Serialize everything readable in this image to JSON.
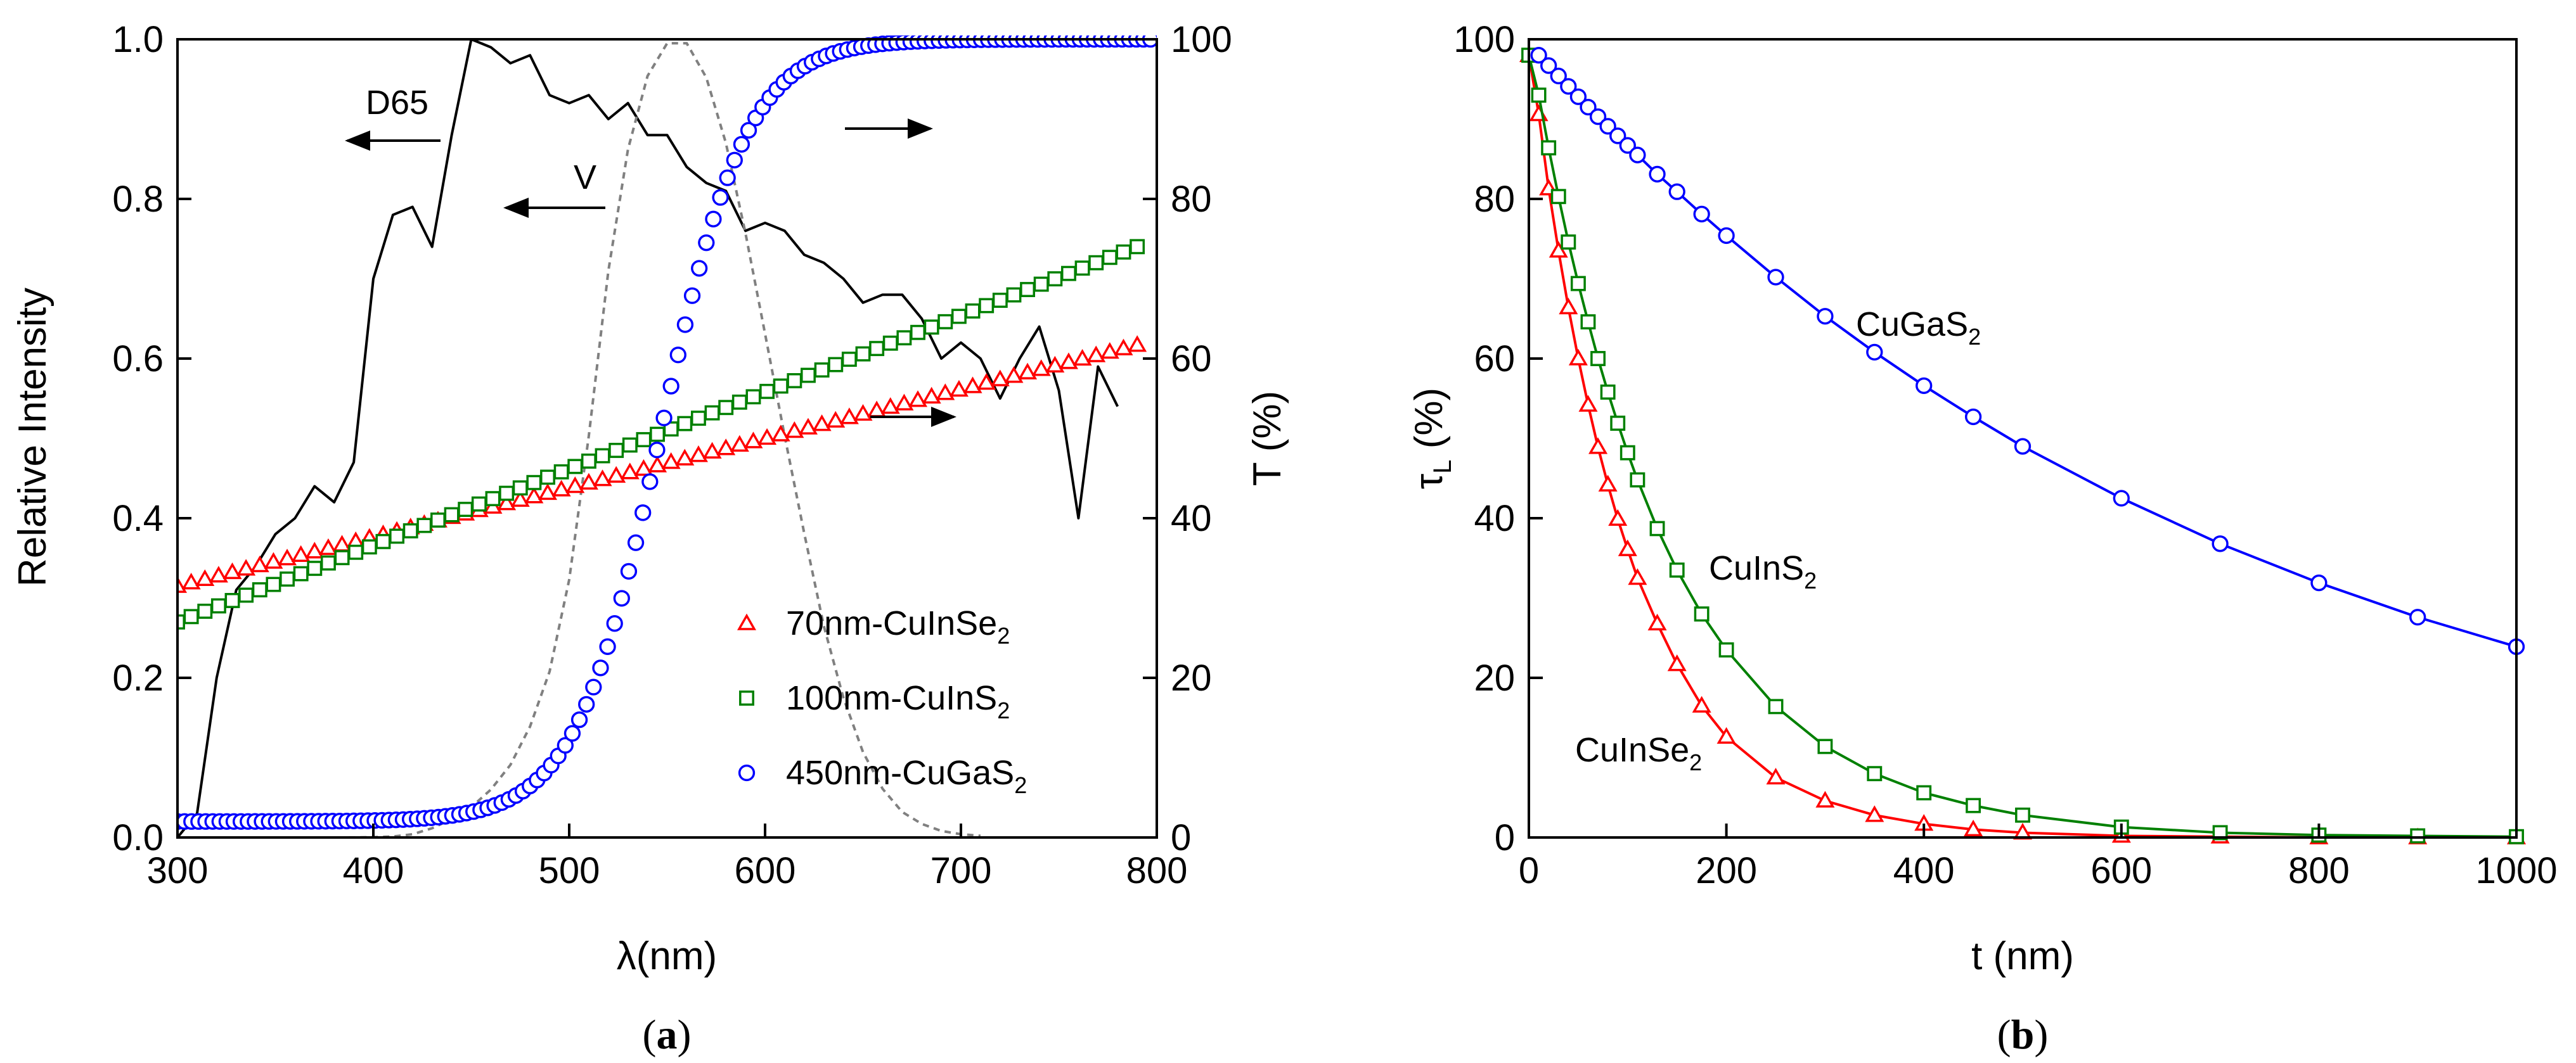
{
  "colors": {
    "red": "#ff0000",
    "green": "#008000",
    "blue": "#0000ff",
    "black": "#000000",
    "gray": "#808080"
  },
  "panels": {
    "a": {
      "label_open": "(",
      "label_letter": "a",
      "label_close": ")"
    },
    "b": {
      "label_open": "(",
      "label_letter": "b",
      "label_close": ")"
    }
  },
  "chart_data": [
    {
      "id": "a",
      "type": "line",
      "xlabel": "λ(nm)",
      "ylabel_left": "Relative Intensity",
      "ylabel_right": "T (%)",
      "xlim": [
        300,
        800
      ],
      "ylim_left": [
        0,
        1.0
      ],
      "ylim_right": [
        0,
        100
      ],
      "xticks": [
        "300",
        "400",
        "500",
        "600",
        "700",
        "800"
      ],
      "yticks_left": [
        "0.0",
        "0.2",
        "0.4",
        "0.6",
        "0.8",
        "1.0"
      ],
      "yticks_right": [
        "0",
        "20",
        "40",
        "60",
        "80",
        "100"
      ],
      "annotations": {
        "d65": "D65",
        "v": "V"
      },
      "d65_curve": {
        "name": "D65",
        "axis": "left",
        "x": [
          300,
          310,
          320,
          330,
          340,
          350,
          360,
          370,
          380,
          390,
          400,
          410,
          420,
          430,
          440,
          450,
          460,
          470,
          480,
          490,
          500,
          510,
          520,
          530,
          540,
          550,
          560,
          570,
          580,
          590,
          600,
          610,
          620,
          630,
          640,
          650,
          660,
          670,
          680,
          690,
          700,
          710,
          720,
          730,
          740,
          750,
          760,
          770,
          780
        ],
        "y": [
          0.0,
          0.03,
          0.2,
          0.31,
          0.34,
          0.38,
          0.4,
          0.44,
          0.42,
          0.47,
          0.7,
          0.78,
          0.79,
          0.74,
          0.88,
          1.0,
          0.99,
          0.97,
          0.98,
          0.93,
          0.92,
          0.93,
          0.9,
          0.92,
          0.88,
          0.88,
          0.84,
          0.82,
          0.81,
          0.76,
          0.77,
          0.76,
          0.73,
          0.72,
          0.7,
          0.67,
          0.68,
          0.68,
          0.65,
          0.6,
          0.62,
          0.6,
          0.55,
          0.6,
          0.64,
          0.56,
          0.4,
          0.59,
          0.54
        ]
      },
      "v_curve": {
        "name": "V",
        "axis": "left",
        "x": [
          370,
          380,
          390,
          400,
          410,
          420,
          430,
          440,
          450,
          460,
          470,
          480,
          490,
          500,
          510,
          520,
          530,
          540,
          550,
          560,
          570,
          580,
          590,
          600,
          610,
          620,
          630,
          640,
          650,
          660,
          670,
          680,
          690,
          700,
          710
        ],
        "y": [
          0.0,
          0.0,
          0.0001,
          0.0004,
          0.0012,
          0.004,
          0.0116,
          0.023,
          0.038,
          0.06,
          0.091,
          0.139,
          0.208,
          0.323,
          0.503,
          0.71,
          0.862,
          0.954,
          0.995,
          0.995,
          0.952,
          0.87,
          0.757,
          0.631,
          0.503,
          0.381,
          0.265,
          0.175,
          0.107,
          0.061,
          0.032,
          0.017,
          0.0082,
          0.0041,
          0.0021
        ]
      },
      "series": [
        {
          "name": "70nm-CuInSe₂",
          "marker": "triangle",
          "color": "#ff0000",
          "axis": "right",
          "x_start": 300,
          "x_end": 795,
          "x_step": 7,
          "y_start": 31.5,
          "y_end": 62
        },
        {
          "name": "100nm-CuInS₂",
          "marker": "square",
          "color": "#008000",
          "axis": "right",
          "x_start": 300,
          "x_end": 795,
          "x_step": 7,
          "y_start": 27,
          "y_end": 74.5
        },
        {
          "name": "450nm-CuGaS₂",
          "marker": "circle",
          "color": "#0000ff",
          "axis": "right",
          "x_start": 300,
          "x_end": 800,
          "x_step": 3.6,
          "model": "logistic",
          "y_base": 2,
          "y_top": 100,
          "x_mid": 547,
          "width": 22
        }
      ],
      "legend": [
        {
          "text": "70nm-CuInSe",
          "sub": "2",
          "marker": "triangle",
          "color": "#ff0000"
        },
        {
          "text": "100nm-CuInS",
          "sub": "2",
          "marker": "square",
          "color": "#008000"
        },
        {
          "text": "450nm-CuGaS",
          "sub": "2",
          "marker": "circle",
          "color": "#0000ff"
        }
      ]
    },
    {
      "id": "b",
      "type": "line",
      "xlabel": "t (nm)",
      "ylabel_main": "τ",
      "ylabel_sub": "L",
      "ylabel_tail": " (%)",
      "xlim": [
        0,
        1000
      ],
      "ylim": [
        0,
        100
      ],
      "xticks": [
        "0",
        "200",
        "400",
        "600",
        "800",
        "1000"
      ],
      "yticks": [
        "0",
        "20",
        "40",
        "60",
        "80",
        "100"
      ],
      "series": [
        {
          "name": "CuInSe₂",
          "label_text": "CuInSe",
          "label_sub": "2",
          "marker": "triangle",
          "color": "#ff0000",
          "x": [
            0,
            10,
            20,
            30,
            40,
            50,
            60,
            70,
            80,
            90,
            100,
            110,
            130,
            150,
            175,
            200,
            250,
            300,
            350,
            400,
            450,
            500,
            600,
            700,
            800,
            900,
            1000
          ],
          "y": [
            98,
            90.6,
            81.3,
            73.5,
            66.4,
            60,
            54.2,
            48.9,
            44.2,
            39.9,
            36.1,
            32.5,
            26.8,
            21.7,
            16.5,
            12.6,
            7.5,
            4.6,
            2.8,
            1.7,
            1.0,
            0.6,
            0.2,
            0.1,
            0.0,
            0.0,
            0.0
          ]
        },
        {
          "name": "CuInS₂",
          "label_text": "CuInS",
          "label_sub": "2",
          "marker": "square",
          "color": "#008000",
          "x": [
            0,
            10,
            20,
            30,
            40,
            50,
            60,
            70,
            80,
            90,
            100,
            110,
            130,
            150,
            175,
            200,
            250,
            300,
            350,
            400,
            450,
            500,
            600,
            700,
            800,
            900,
            1000
          ],
          "y": [
            98,
            93,
            86.4,
            80.3,
            74.6,
            69.4,
            64.6,
            60,
            55.8,
            51.9,
            48.2,
            44.8,
            38.7,
            33.5,
            28,
            23.5,
            16.4,
            11.4,
            8,
            5.6,
            4,
            2.8,
            1.3,
            0.6,
            0.3,
            0.2,
            0.1
          ]
        },
        {
          "name": "CuGaS₂",
          "label_text": "CuGaS",
          "label_sub": "2",
          "marker": "circle",
          "color": "#0000ff",
          "x": [
            10,
            20,
            30,
            40,
            50,
            60,
            70,
            80,
            90,
            100,
            110,
            130,
            150,
            175,
            200,
            250,
            300,
            350,
            400,
            450,
            500,
            600,
            700,
            800,
            900,
            1000
          ],
          "y": [
            98,
            96.7,
            95.4,
            94.1,
            92.8,
            91.5,
            90.3,
            89.1,
            87.9,
            86.7,
            85.5,
            83.1,
            80.9,
            78.1,
            75.4,
            70.2,
            65.3,
            60.8,
            56.6,
            52.7,
            49,
            42.5,
            36.8,
            31.9,
            27.6,
            23.9
          ]
        }
      ]
    }
  ]
}
